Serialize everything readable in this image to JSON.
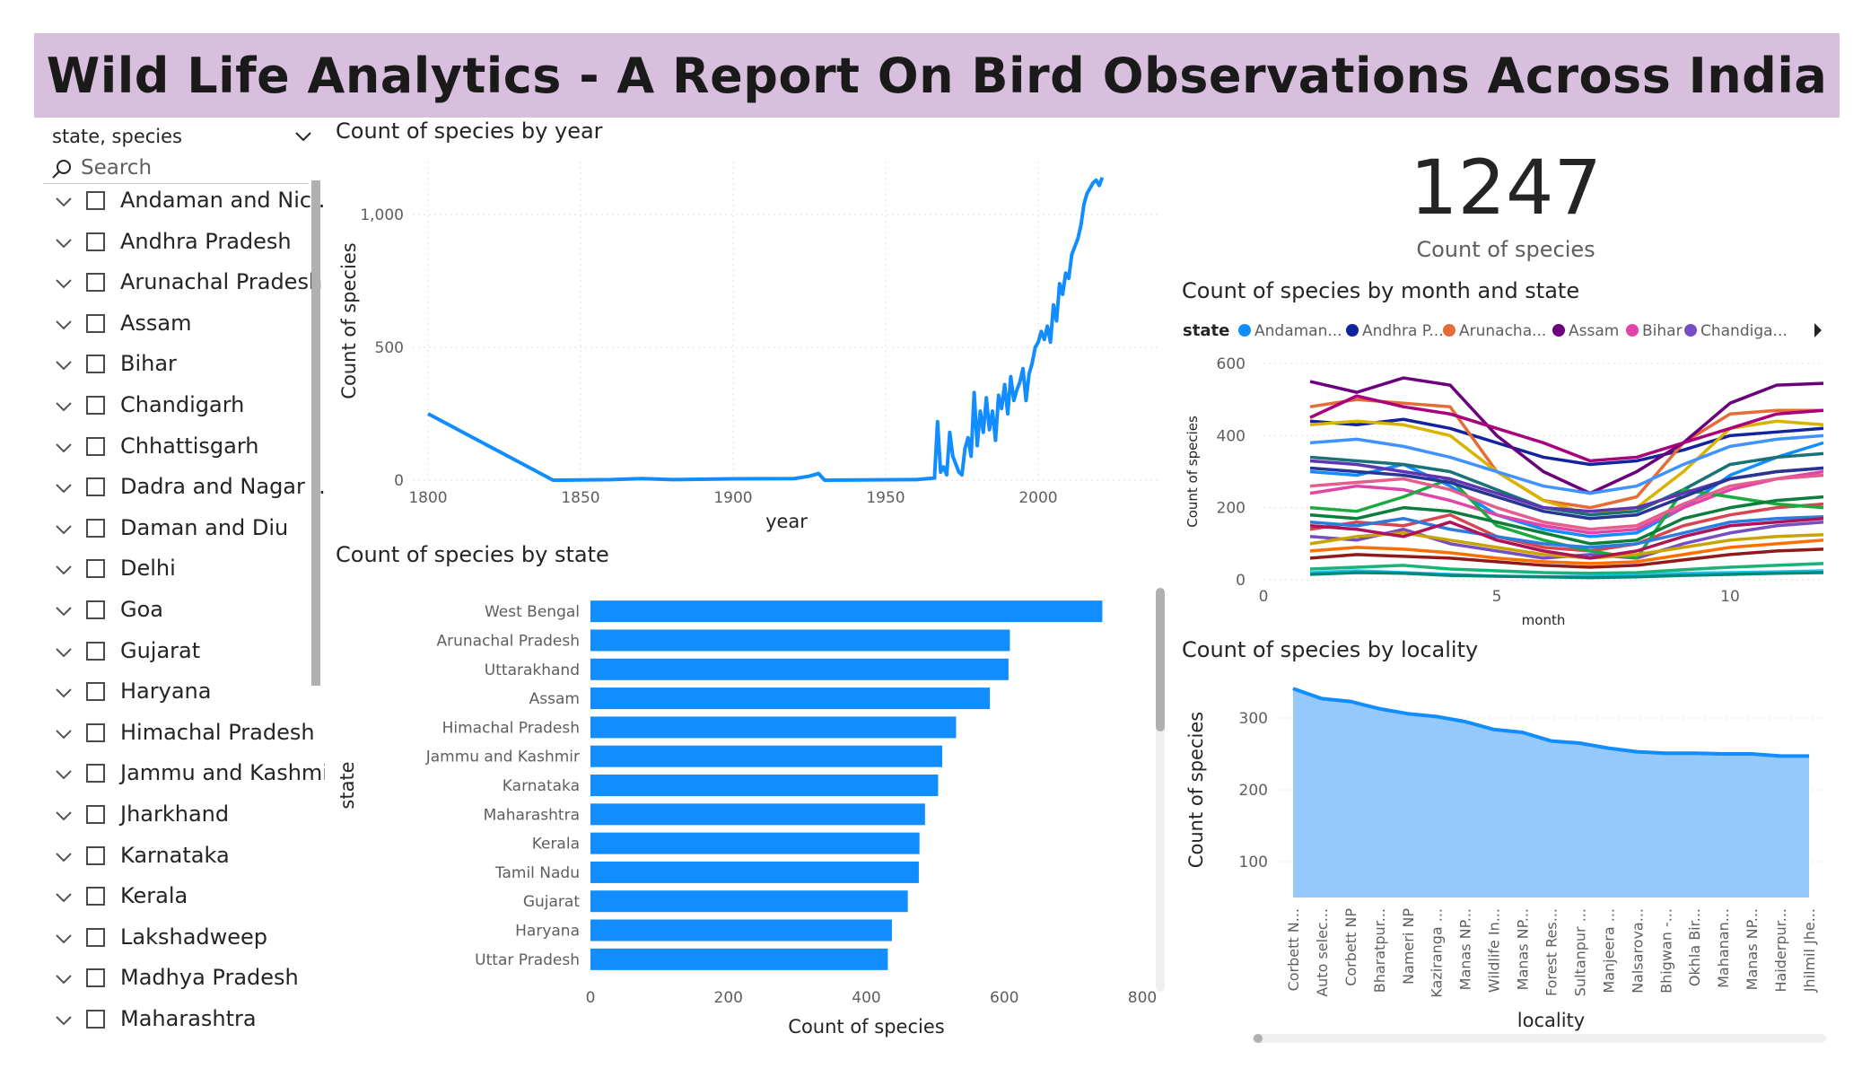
{
  "header": {
    "title": "Wild Life Analytics - A Report On Bird Observations Across India"
  },
  "slicer": {
    "field_label": "state, species",
    "search_placeholder": "Search",
    "items": [
      "Andaman and Nic...",
      "Andhra Pradesh",
      "Arunachal Pradesh",
      "Assam",
      "Bihar",
      "Chandigarh",
      "Chhattisgarh",
      "Dadra and Nagar ...",
      "Daman and Diu",
      "Delhi",
      "Goa",
      "Gujarat",
      "Haryana",
      "Himachal Pradesh",
      "Jammu and Kashmir",
      "Jharkhand",
      "Karnataka",
      "Kerala",
      "Lakshadweep",
      "Madhya Pradesh",
      "Maharashtra"
    ]
  },
  "kpi": {
    "value": "1247",
    "label": "Count of species"
  },
  "colors": {
    "primary": "#118dff",
    "area_fill": "#95c8fb",
    "banner": "#d8bfde"
  },
  "chart_data": [
    {
      "id": "year",
      "type": "line",
      "title": "Count of species by year",
      "xlabel": "year",
      "ylabel": "Count of species",
      "xlim": [
        1795,
        2040
      ],
      "ylim": [
        0,
        1200
      ],
      "xticks": [
        1800,
        1850,
        1900,
        1950,
        2000
      ],
      "yticks": [
        0,
        500,
        1000
      ],
      "ytick_labels": [
        "0",
        "500",
        "1,000"
      ],
      "x": [
        1800,
        1841,
        1860,
        1870,
        1880,
        1900,
        1920,
        1925,
        1928,
        1930,
        1960,
        1966,
        1967,
        1968,
        1969,
        1970,
        1971,
        1972,
        1973,
        1974,
        1975,
        1976,
        1977,
        1978,
        1979,
        1980,
        1981,
        1982,
        1983,
        1984,
        1985,
        1986,
        1987,
        1988,
        1989,
        1990,
        1991,
        1992,
        1993,
        1994,
        1995,
        1996,
        1997,
        1998,
        1999,
        2000,
        2001,
        2002,
        2003,
        2004,
        2005,
        2006,
        2007,
        2008,
        2009,
        2010,
        2011,
        2012,
        2013,
        2014,
        2015,
        2016,
        2017,
        2018,
        2019,
        2020,
        2021
      ],
      "y": [
        250,
        0,
        2,
        6,
        2,
        5,
        6,
        15,
        25,
        0,
        2,
        8,
        220,
        30,
        50,
        20,
        180,
        90,
        60,
        30,
        20,
        120,
        160,
        90,
        330,
        130,
        260,
        180,
        310,
        190,
        260,
        150,
        320,
        270,
        360,
        250,
        390,
        300,
        340,
        370,
        420,
        300,
        400,
        440,
        500,
        520,
        560,
        530,
        580,
        520,
        660,
        600,
        740,
        700,
        780,
        760,
        850,
        880,
        910,
        960,
        1040,
        1080,
        1100,
        1120,
        1130,
        1110,
        1140
      ]
    },
    {
      "id": "state",
      "type": "bar",
      "orientation": "horizontal",
      "title": "Count of species by state",
      "xlabel": "Count of species",
      "ylabel": "state",
      "xlim": [
        0,
        800
      ],
      "xticks": [
        0,
        200,
        400,
        600,
        800
      ],
      "categories": [
        "West Bengal",
        "Arunachal Pradesh",
        "Uttarakhand",
        "Assam",
        "Himachal Pradesh",
        "Jammu and Kashmir",
        "Karnataka",
        "Maharashtra",
        "Kerala",
        "Tamil Nadu",
        "Gujarat",
        "Haryana",
        "Uttar Pradesh"
      ],
      "values": [
        742,
        608,
        606,
        579,
        530,
        510,
        504,
        485,
        477,
        476,
        460,
        437,
        431
      ]
    },
    {
      "id": "month",
      "type": "line",
      "title": "Count of species by month and state",
      "legend_title": "state",
      "legend_labels": [
        "Andaman...",
        "Andhra P...",
        "Arunacha...",
        "Assam",
        "Bihar",
        "Chandiga..."
      ],
      "legend_colors": [
        "#118dff",
        "#12239e",
        "#e66c37",
        "#6b007b",
        "#e044a7",
        "#744ec2"
      ],
      "xlabel": "month",
      "ylabel": "Count of species",
      "xlim": [
        0,
        12
      ],
      "ylim": [
        0,
        600
      ],
      "xticks": [
        0,
        5,
        10
      ],
      "yticks": [
        0,
        200,
        400,
        600
      ],
      "x": [
        1,
        2,
        3,
        4,
        5,
        6,
        7,
        8,
        9,
        10,
        11,
        12
      ],
      "series": [
        {
          "color": "#118dff",
          "values": [
            300,
            290,
            320,
            260,
            180,
            140,
            120,
            130,
            200,
            290,
            340,
            380
          ]
        },
        {
          "color": "#12239e",
          "values": [
            440,
            430,
            445,
            420,
            380,
            340,
            320,
            330,
            360,
            400,
            410,
            420
          ]
        },
        {
          "color": "#e66c37",
          "values": [
            480,
            500,
            490,
            480,
            300,
            220,
            200,
            230,
            380,
            460,
            470,
            470
          ]
        },
        {
          "color": "#6b007b",
          "values": [
            550,
            520,
            560,
            540,
            400,
            300,
            240,
            300,
            380,
            490,
            540,
            545
          ]
        },
        {
          "color": "#e044a7",
          "values": [
            240,
            260,
            250,
            220,
            180,
            150,
            130,
            140,
            200,
            250,
            280,
            300
          ]
        },
        {
          "color": "#744ec2",
          "values": [
            120,
            110,
            140,
            100,
            80,
            60,
            70,
            60,
            100,
            130,
            150,
            160
          ]
        },
        {
          "color": "#d9b300",
          "values": [
            430,
            440,
            430,
            400,
            300,
            220,
            180,
            200,
            300,
            420,
            440,
            430
          ]
        },
        {
          "color": "#d64550",
          "values": [
            140,
            160,
            150,
            180,
            120,
            90,
            80,
            100,
            150,
            180,
            200,
            210
          ]
        },
        {
          "color": "#197278",
          "values": [
            340,
            330,
            320,
            300,
            250,
            200,
            180,
            190,
            250,
            320,
            340,
            350
          ]
        },
        {
          "color": "#1aab40",
          "values": [
            200,
            190,
            230,
            280,
            150,
            110,
            80,
            60,
            250,
            230,
            210,
            200
          ]
        },
        {
          "color": "#15c6f4",
          "values": [
            20,
            25,
            20,
            15,
            10,
            8,
            10,
            12,
            18,
            20,
            22,
            25
          ]
        },
        {
          "color": "#4092ff",
          "values": [
            380,
            390,
            370,
            340,
            300,
            260,
            240,
            260,
            320,
            370,
            390,
            400
          ]
        },
        {
          "color": "#a9007c",
          "values": [
            450,
            510,
            480,
            460,
            420,
            380,
            330,
            340,
            380,
            420,
            460,
            470
          ]
        },
        {
          "color": "#8f1a1a",
          "values": [
            60,
            70,
            65,
            60,
            50,
            40,
            35,
            40,
            55,
            70,
            80,
            85
          ]
        },
        {
          "color": "#2d7ae0",
          "values": [
            160,
            150,
            170,
            140,
            120,
            100,
            90,
            100,
            130,
            160,
            170,
            175
          ]
        },
        {
          "color": "#c8a400",
          "values": [
            100,
            120,
            130,
            110,
            90,
            70,
            60,
            70,
            90,
            110,
            120,
            125
          ]
        },
        {
          "color": "#e55d8c",
          "values": [
            260,
            270,
            280,
            250,
            200,
            160,
            140,
            150,
            210,
            260,
            280,
            290
          ]
        },
        {
          "color": "#19b37a",
          "values": [
            30,
            35,
            40,
            30,
            25,
            20,
            18,
            20,
            28,
            35,
            40,
            45
          ]
        },
        {
          "color": "#5e35b1",
          "values": [
            330,
            320,
            300,
            280,
            240,
            200,
            190,
            200,
            240,
            280,
            300,
            310
          ]
        },
        {
          "color": "#0c7d3b",
          "values": [
            180,
            170,
            200,
            190,
            160,
            130,
            100,
            110,
            170,
            200,
            220,
            230
          ]
        },
        {
          "color": "#ff6f00",
          "values": [
            80,
            90,
            85,
            75,
            60,
            50,
            45,
            50,
            70,
            90,
            100,
            110
          ]
        },
        {
          "color": "#00897b",
          "values": [
            15,
            20,
            18,
            12,
            10,
            8,
            6,
            8,
            12,
            15,
            18,
            20
          ]
        },
        {
          "color": "#ad1457",
          "values": [
            150,
            140,
            120,
            160,
            110,
            80,
            60,
            80,
            120,
            150,
            160,
            170
          ]
        },
        {
          "color": "#283593",
          "values": [
            310,
            300,
            290,
            270,
            230,
            190,
            170,
            180,
            230,
            280,
            300,
            310
          ]
        }
      ]
    },
    {
      "id": "locality",
      "type": "area",
      "title": "Count of species by locality",
      "xlabel": "locality",
      "ylabel": "Count of species",
      "ylim": [
        50,
        350
      ],
      "yticks": [
        100,
        200,
        300
      ],
      "categories": [
        "Corbett N...",
        "Auto selec...",
        "Corbett NP",
        "Bharatpur...",
        "Nameri NP",
        "Kaziranga ...",
        "Manas NP...",
        "Wildlife In...",
        "Manas NP...",
        "Forest Res...",
        "Sultanpur ...",
        "Manjeera ...",
        "Nalsarova...",
        "Bhigwan -...",
        "Okhla Bir...",
        "Mahanan...",
        "Manas NP...",
        "Haiderpur...",
        "Jhilmil Jhe..."
      ],
      "values": [
        341,
        327,
        323,
        313,
        306,
        302,
        295,
        284,
        280,
        268,
        265,
        258,
        253,
        251,
        251,
        250,
        250,
        247,
        247
      ]
    }
  ]
}
